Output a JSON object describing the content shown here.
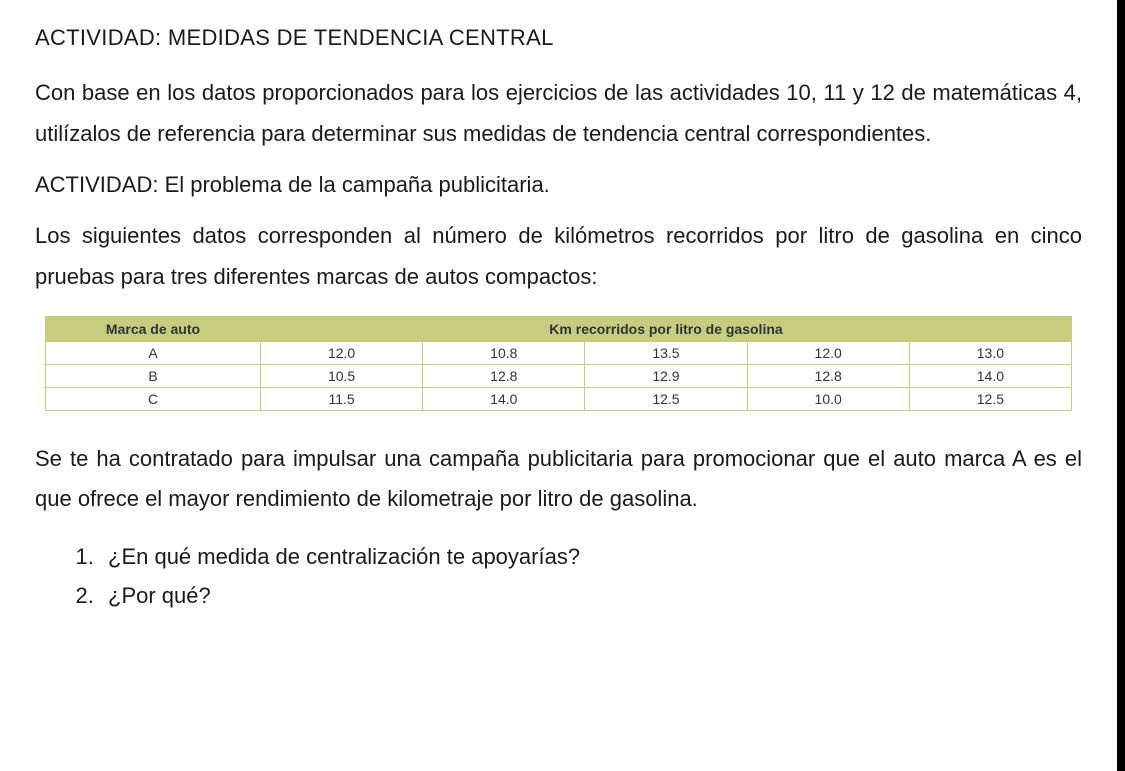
{
  "doc": {
    "heading_main": "ACTIVIDAD: MEDIDAS DE TENDENCIA CENTRAL",
    "intro_para": "Con base en los datos proporcionados para los ejercicios de las actividades 10, 11 y 12 de matemáticas 4, utilízalos de referencia para determinar sus medidas de tendencia central correspondientes.",
    "sub_heading": "ACTIVIDAD: El problema de la campaña publicitaria.",
    "context_para": "Los siguientes datos corresponden al número de kilómetros recorridos por litro de gasolina en cinco pruebas para tres diferentes marcas de autos compactos:",
    "closing_para": "Se te ha contratado para impulsar una campaña publicitaria para promocionar que el auto marca A es el que ofrece el mayor rendimiento de kilometraje por litro de gasolina.",
    "questions": [
      "¿En qué medida de centralización te apoyarías?",
      "¿Por qué?"
    ]
  },
  "table": {
    "header_left": "Marca de auto",
    "header_right": "Km recorridos por litro de gasolina",
    "header_bg": "#c6cd80",
    "border_color": "#c6cd80",
    "cell_bg": "#ffffff",
    "font_size": 14,
    "rows": [
      {
        "brand": "A",
        "vals": [
          "12.0",
          "10.8",
          "13.5",
          "12.0",
          "13.0"
        ]
      },
      {
        "brand": "B",
        "vals": [
          "10.5",
          "12.8",
          "12.9",
          "12.8",
          "14.0"
        ]
      },
      {
        "brand": "C",
        "vals": [
          "11.5",
          "14.0",
          "12.5",
          "10.0",
          "12.5"
        ]
      }
    ]
  },
  "colors": {
    "background": "#ffffff",
    "text": "#1a1a1a",
    "border_right": "#000000"
  }
}
